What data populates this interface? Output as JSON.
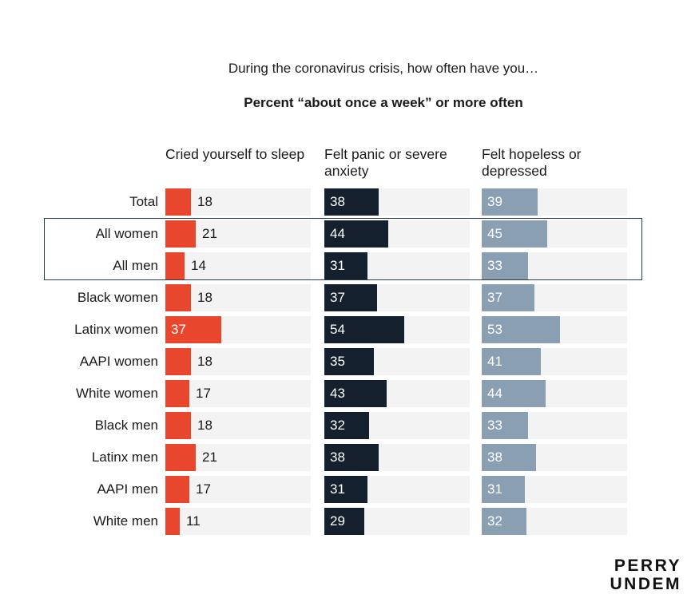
{
  "chart_data": {
    "type": "bar",
    "title": "During the coronavirus crisis, how often have you…",
    "subtitle": "Percent “about once a week” or more often",
    "categories": [
      "Total",
      "All women",
      "All men",
      "Black women",
      "Latinx women",
      "AAPI women",
      "White women",
      "Black men",
      "Latinx men",
      "AAPI men",
      "White men"
    ],
    "series": [
      {
        "name": "Cried yourself to sleep",
        "color": "#e8472e",
        "values": [
          18,
          21,
          14,
          18,
          37,
          18,
          17,
          18,
          21,
          17,
          11
        ]
      },
      {
        "name": "Felt panic or severe anxiety",
        "color": "#14202e",
        "values": [
          38,
          44,
          31,
          37,
          54,
          35,
          43,
          32,
          38,
          31,
          29
        ]
      },
      {
        "name": "Felt hopeless or depressed",
        "color": "#8a9fb1",
        "values": [
          39,
          45,
          33,
          37,
          53,
          41,
          44,
          33,
          38,
          31,
          32
        ]
      }
    ],
    "xlim": [
      0,
      100
    ],
    "highlighted_categories": [
      "All women",
      "All men"
    ]
  },
  "logo": {
    "line1": "PERRY",
    "line2": "UNDEM"
  }
}
